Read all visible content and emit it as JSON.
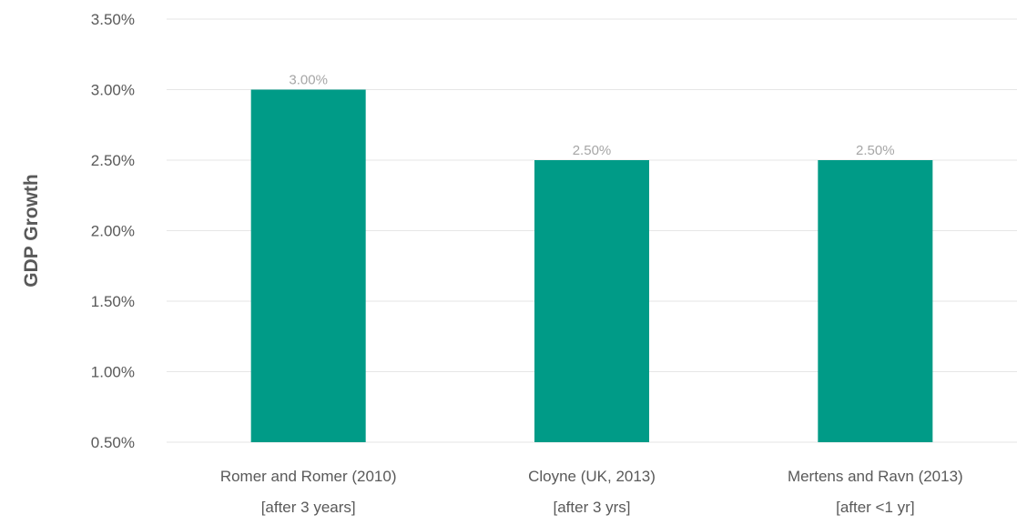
{
  "chart_data": {
    "type": "bar",
    "title": "",
    "xlabel": "",
    "ylabel": "GDP Growth",
    "ylim": [
      0.5,
      3.5
    ],
    "y_ticks": [
      "0.50%",
      "1.00%",
      "1.50%",
      "2.00%",
      "2.50%",
      "3.00%",
      "3.50%"
    ],
    "y_tick_values": [
      0.5,
      1.0,
      1.5,
      2.0,
      2.5,
      3.0,
      3.5
    ],
    "grid": true,
    "legend": "none",
    "categories": [
      {
        "line1": "Romer and Romer (2010)",
        "line2": "[after 3 years]"
      },
      {
        "line1": "Cloyne (UK, 2013)",
        "line2": "[after 3 yrs]"
      },
      {
        "line1": "Mertens and Ravn (2013)",
        "line2": "[after <1 yr]"
      }
    ],
    "values": [
      3.0,
      2.5,
      2.5
    ],
    "data_labels": [
      "3.00%",
      "2.50%",
      "2.50%"
    ],
    "colors": {
      "bar": "#009b87",
      "grid": "#e6e6e6",
      "axis_text": "#595959",
      "ylabel": "#595959",
      "data_label": "#a6a6a6"
    }
  }
}
